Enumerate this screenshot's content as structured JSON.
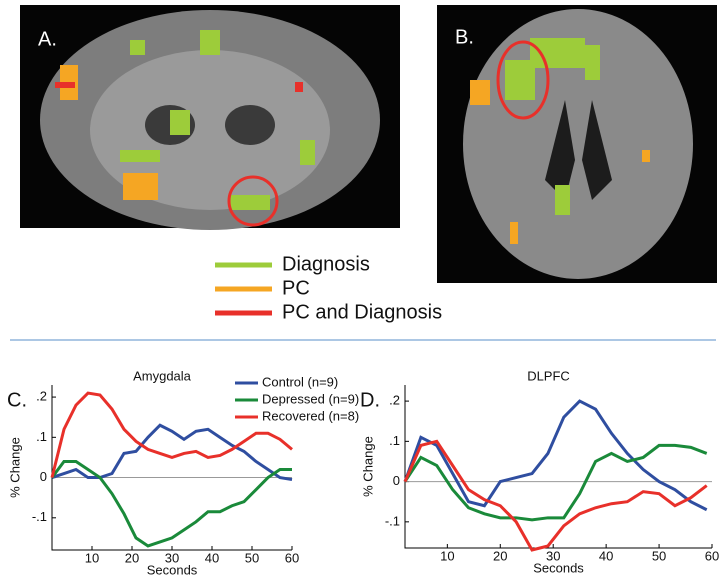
{
  "figure": {
    "panel_a": "A.",
    "panel_b": "B.",
    "legend": [
      {
        "label": "Diagnosis",
        "color": "#9dcc3a"
      },
      {
        "label": "PC",
        "color": "#f5a623"
      },
      {
        "label": "PC and Diagnosis",
        "color": "#e8302a"
      }
    ]
  },
  "chart_data": [
    {
      "type": "line",
      "panel_label": "C.",
      "title": "Amygdala",
      "xlabel": "Seconds",
      "ylabel": "% Change",
      "x": [
        0,
        3,
        6,
        9,
        12,
        15,
        18,
        21,
        24,
        27,
        30,
        33,
        36,
        39,
        42,
        45,
        48,
        51,
        54,
        57,
        60
      ],
      "series": [
        {
          "name": "Control (n=9)",
          "color": "#2f4ea0",
          "values": [
            0,
            0.01,
            0.02,
            0,
            0,
            0.01,
            0.06,
            0.065,
            0.1,
            0.13,
            0.115,
            0.095,
            0.115,
            0.12,
            0.1,
            0.08,
            0.065,
            0.04,
            0.02,
            0,
            -0.005
          ]
        },
        {
          "name": "Depressed (n=9)",
          "color": "#1a8a3a",
          "values": [
            0,
            0.04,
            0.04,
            0.02,
            0,
            -0.04,
            -0.09,
            -0.15,
            -0.17,
            -0.16,
            -0.15,
            -0.13,
            -0.11,
            -0.085,
            -0.085,
            -0.07,
            -0.06,
            -0.03,
            0,
            0.02,
            0.02
          ]
        },
        {
          "name": "Recovered (n=8)",
          "color": "#e8302a",
          "values": [
            0,
            0.12,
            0.18,
            0.21,
            0.205,
            0.17,
            0.12,
            0.09,
            0.07,
            0.06,
            0.05,
            0.06,
            0.065,
            0.05,
            0.055,
            0.07,
            0.09,
            0.11,
            0.11,
            0.095,
            0.07
          ]
        }
      ],
      "xlim": [
        0,
        60
      ],
      "xticks": [
        10,
        20,
        30,
        40,
        50,
        60
      ],
      "ylim": [
        -0.18,
        0.23
      ],
      "yticks": [
        {
          "value": 0.2,
          "label": ".2"
        },
        {
          "value": 0.1,
          "label": ".1"
        },
        0,
        {
          "value": -0.1,
          "label": "-.1"
        }
      ]
    },
    {
      "type": "line",
      "panel_label": "D.",
      "title": "DLPFC",
      "xlabel": "Seconds",
      "ylabel": "% Change",
      "x": [
        2,
        5,
        8,
        11,
        14,
        17,
        20,
        23,
        26,
        29,
        32,
        35,
        38,
        41,
        44,
        47,
        50,
        53,
        56,
        59
      ],
      "series": [
        {
          "color": "#2f4ea0",
          "values": [
            0,
            0.11,
            0.09,
            0.02,
            -0.05,
            -0.06,
            0,
            0.01,
            0.02,
            0.07,
            0.16,
            0.2,
            0.18,
            0.12,
            0.07,
            0.03,
            0,
            -0.02,
            -0.05,
            -0.07
          ]
        },
        {
          "color": "#1a8a3a",
          "values": [
            0,
            0.06,
            0.04,
            -0.02,
            -0.065,
            -0.08,
            -0.09,
            -0.09,
            -0.095,
            -0.09,
            -0.09,
            -0.03,
            0.05,
            0.07,
            0.05,
            0.06,
            0.09,
            0.09,
            0.085,
            0.07
          ]
        },
        {
          "color": "#e8302a",
          "values": [
            0,
            0.09,
            0.1,
            0.04,
            -0.02,
            -0.045,
            -0.06,
            -0.1,
            -0.17,
            -0.16,
            -0.11,
            -0.08,
            -0.065,
            -0.055,
            -0.05,
            -0.025,
            -0.03,
            -0.06,
            -0.04,
            -0.01
          ]
        }
      ],
      "xlim": [
        2,
        60
      ],
      "xticks": [
        10,
        20,
        30,
        40,
        50,
        60
      ],
      "ylim": [
        -0.165,
        0.24
      ],
      "yticks": [
        {
          "value": 0.2,
          "label": ".2"
        },
        {
          "value": 0.1,
          "label": ".1"
        },
        0,
        {
          "value": -0.1,
          "label": "-.1"
        }
      ]
    }
  ]
}
